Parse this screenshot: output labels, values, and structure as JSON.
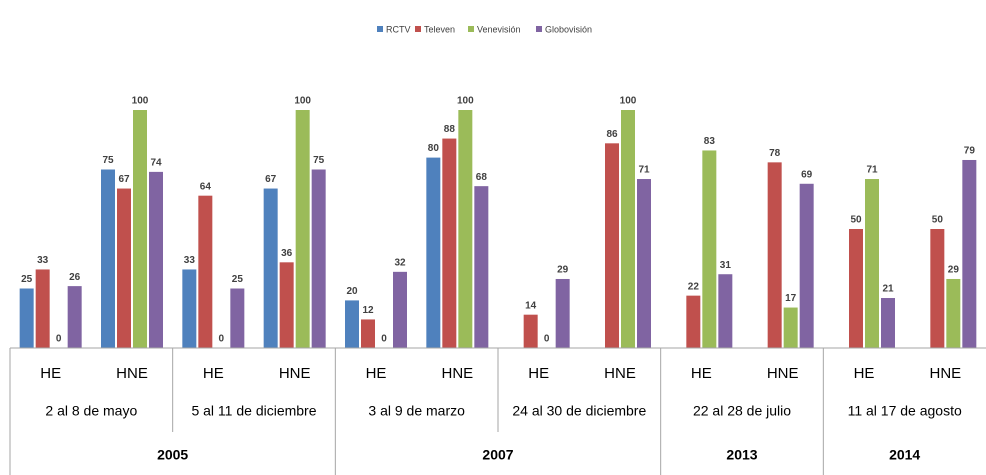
{
  "chart_data": {
    "type": "bar",
    "groups": [
      {
        "year": 2005,
        "periods": [
          "2 al 8 de mayo",
          "5 al 11 de diciembre"
        ]
      },
      {
        "year": 2007,
        "periods": [
          "3 al 9 de marzo",
          "24 al 30 de diciembre"
        ]
      },
      {
        "year": 2013,
        "periods": [
          "22 al 28 de julio"
        ]
      },
      {
        "year": 2014,
        "periods": [
          "11 al 17 de agosto"
        ]
      }
    ],
    "subcategories": [
      "HE",
      "HNE"
    ],
    "series": [
      {
        "name": "RCTV",
        "color": "#4f81bd",
        "values": [
          25,
          75,
          33,
          67,
          20,
          80,
          null,
          null,
          null,
          null,
          null,
          null
        ]
      },
      {
        "name": "Televen",
        "color": "#c0504d",
        "values": [
          33,
          67,
          64,
          36,
          12,
          88,
          14,
          86,
          22,
          78,
          50,
          50
        ]
      },
      {
        "name": "Venevisión",
        "color": "#9bbb59",
        "values": [
          0,
          100,
          0,
          100,
          0,
          100,
          0,
          100,
          83,
          17,
          71,
          29
        ]
      },
      {
        "name": "Globovisión",
        "color": "#8064a2",
        "values": [
          26,
          74,
          25,
          75,
          32,
          68,
          29,
          71,
          31,
          69,
          21,
          79
        ]
      }
    ],
    "legend": "top"
  }
}
